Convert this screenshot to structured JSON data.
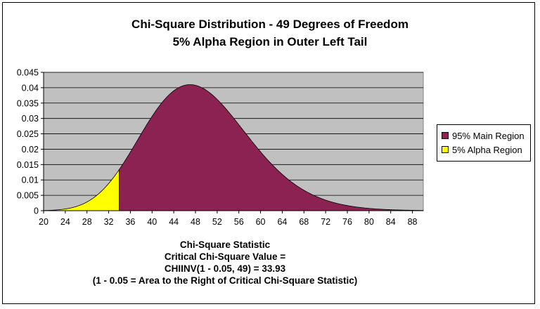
{
  "chart_data": {
    "type": "area",
    "title": "Chi-Square Distribution - 49 Degrees of Freedom",
    "subtitle": "5% Alpha Region in Outer Left Tail",
    "degrees_of_freedom": 49,
    "critical_value": 33.93,
    "xlim": [
      20,
      90
    ],
    "ylim": [
      0,
      0.045
    ],
    "x_ticks": [
      "20",
      "24",
      "28",
      "32",
      "36",
      "40",
      "44",
      "48",
      "52",
      "56",
      "60",
      "64",
      "68",
      "72",
      "76",
      "80",
      "84",
      "88"
    ],
    "y_ticks": [
      "0",
      "0.005",
      "0.01",
      "0.015",
      "0.02",
      "0.025",
      "0.03",
      "0.035",
      "0.04",
      "0.045"
    ],
    "grid": true,
    "legend_position": "right",
    "series": [
      {
        "name": "95% Main Region",
        "color": "#8B2252",
        "x_range": [
          33.93,
          90
        ]
      },
      {
        "name": "5% Alpha Region",
        "color": "#FFFF00",
        "x_range": [
          20,
          33.93
        ]
      }
    ],
    "xlabel_lines": [
      "Chi-Square Statistic",
      "Critical Chi-Square Value =",
      "CHIINV(1 - 0.05, 49) = 33.93",
      "(1 - 0.05 = Area to the Right of Critical Chi-Square Statistic)"
    ],
    "colors": {
      "plot_bg": "#C0C0C0",
      "grid": "#000000"
    }
  }
}
